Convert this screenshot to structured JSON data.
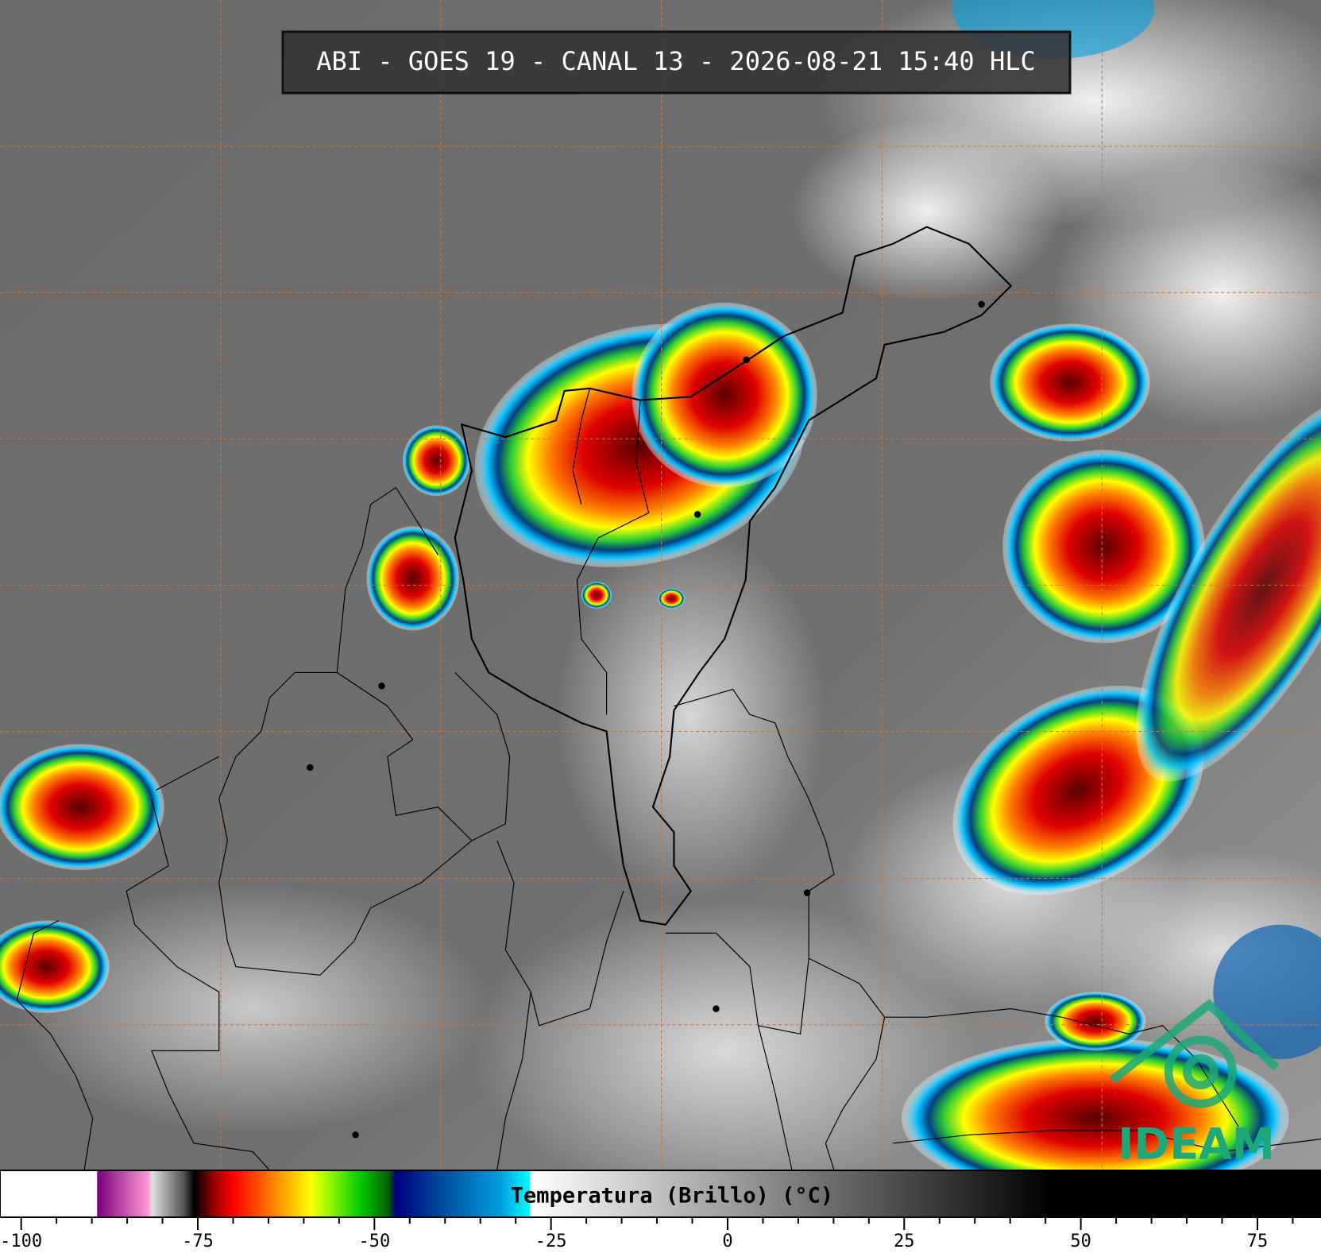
{
  "title": "ABI - GOES 19 - CANAL 13 - 2026-08-21 15:40 HLC",
  "logo": "IDEAM",
  "chart_data": {
    "type": "colorbar",
    "label": "Temperatura (Brillo) (°C)",
    "xlim": [
      -103,
      84
    ],
    "xticks": [
      -100,
      -75,
      -50,
      -25,
      0,
      25,
      50,
      75
    ],
    "minor_xticks": [
      -95,
      -90,
      -85,
      -80,
      -70,
      -65,
      -60,
      -55,
      -45,
      -40,
      -35,
      -30,
      -20,
      -15,
      -10,
      -5,
      5,
      10,
      15,
      20,
      30,
      35,
      40,
      45,
      55,
      60,
      65,
      70,
      80
    ],
    "colorscale": [
      {
        "value": -103,
        "color": "#ffffff"
      },
      {
        "value": -89.3,
        "color": "#ffffff"
      },
      {
        "value": -89.2,
        "color": "#7a007a"
      },
      {
        "value": -82,
        "color": "#ff9ad8"
      },
      {
        "value": -81.5,
        "color": "#e0e0e0"
      },
      {
        "value": -77,
        "color": "#555555"
      },
      {
        "value": -75.5,
        "color": "#000000"
      },
      {
        "value": -73,
        "color": "#8b0000"
      },
      {
        "value": -70,
        "color": "#ff0000"
      },
      {
        "value": -64,
        "color": "#ff8800"
      },
      {
        "value": -59,
        "color": "#ffff00"
      },
      {
        "value": -57,
        "color": "#aaff00"
      },
      {
        "value": -52,
        "color": "#00cc00"
      },
      {
        "value": -48,
        "color": "#006000"
      },
      {
        "value": -47,
        "color": "#000080"
      },
      {
        "value": -40,
        "color": "#0050a0"
      },
      {
        "value": -32,
        "color": "#00a0e0"
      },
      {
        "value": -28,
        "color": "#00ffff"
      },
      {
        "value": -27.9,
        "color": "#ffffff"
      },
      {
        "value": 46,
        "color": "#000000"
      },
      {
        "value": 84,
        "color": "#000000"
      }
    ]
  }
}
